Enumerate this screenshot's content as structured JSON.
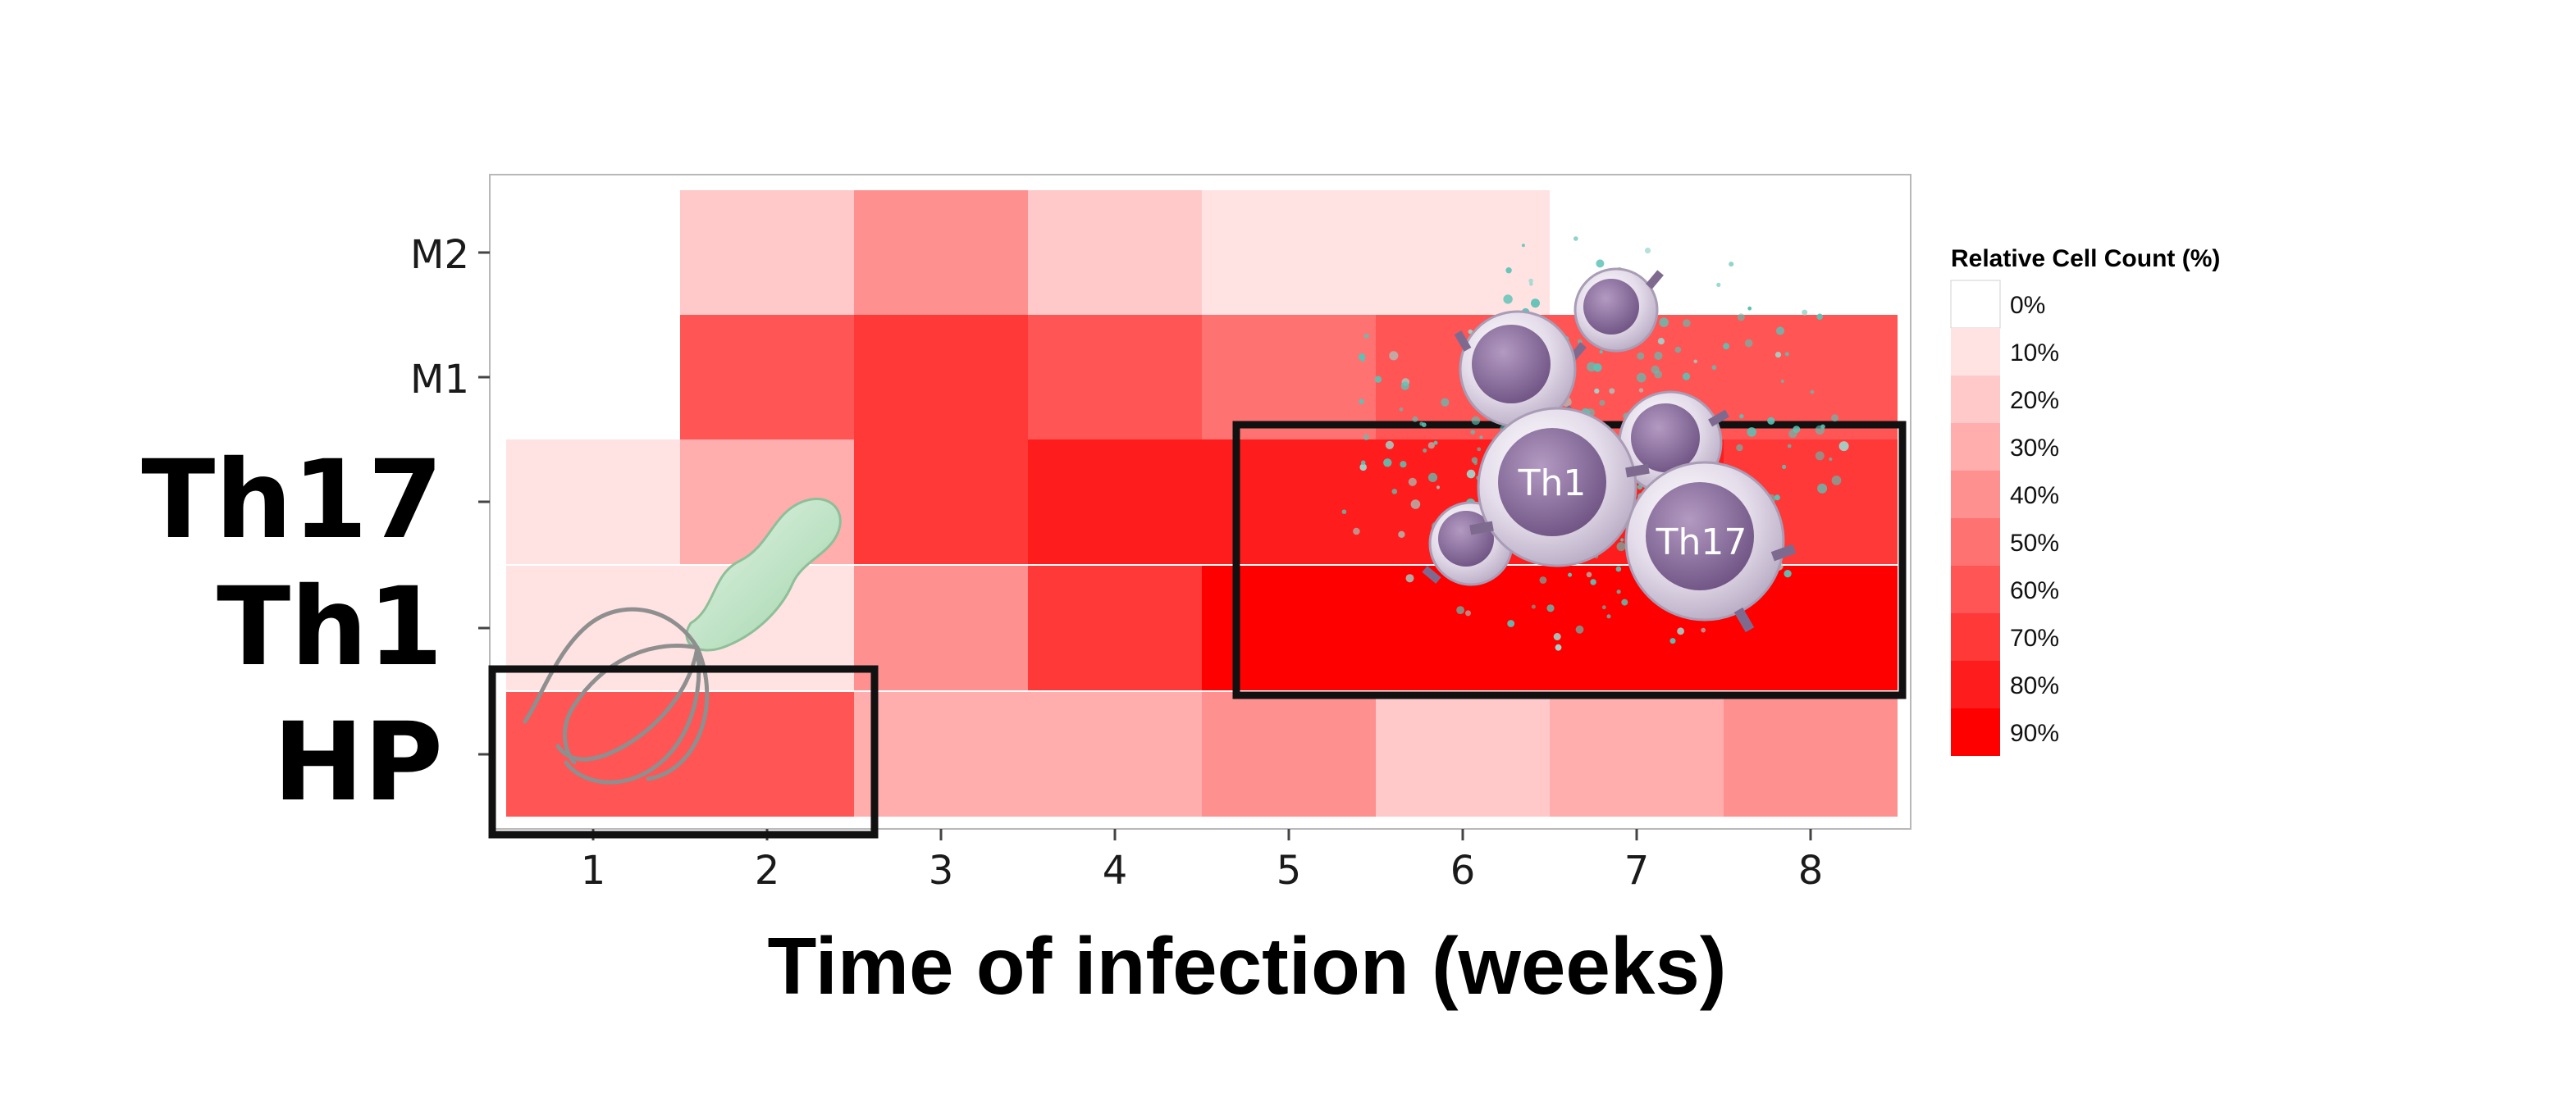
{
  "chart_data": {
    "type": "heatmap",
    "title": "",
    "xlabel": "Time of infection (weeks)",
    "ylabel": "",
    "x": [
      1,
      2,
      3,
      4,
      5,
      6,
      7,
      8
    ],
    "y_rows": [
      "HP",
      "Th1",
      "Th17",
      "M1",
      "M2"
    ],
    "y_tick_labels": {
      "M1": "M1",
      "M2": "M2"
    },
    "row_side_labels": [
      "Th17",
      "Th1",
      "HP"
    ],
    "values": {
      "M2": [
        null,
        20,
        40,
        20,
        10,
        10,
        null,
        null
      ],
      "M1": [
        null,
        60,
        70,
        60,
        50,
        60,
        60,
        60
      ],
      "Th17": [
        10,
        30,
        70,
        80,
        80,
        80,
        80,
        70
      ],
      "Th1": [
        10,
        10,
        40,
        70,
        90,
        90,
        90,
        90
      ],
      "HP": [
        60,
        60,
        30,
        30,
        40,
        20,
        30,
        40
      ]
    },
    "legend": {
      "title": "Relative Cell Count (%)",
      "entries": [
        "0%",
        "10%",
        "20%",
        "30%",
        "40%",
        "50%",
        "60%",
        "70%",
        "80%",
        "90%"
      ],
      "placement": "right"
    },
    "highlights": [
      {
        "rows": [
          "HP"
        ],
        "weeks": [
          1,
          2
        ]
      },
      {
        "rows": [
          "Th17",
          "Th1"
        ],
        "weeks": [
          5,
          8
        ]
      }
    ],
    "illustration_labels": [
      "Th1",
      "Th17"
    ],
    "grid": true,
    "colors": {
      "scale": [
        "#ffffff",
        "#ffe3e3",
        "#ffc9c9",
        "#ffadad",
        "#ff9090",
        "#ff7272",
        "#ff5555",
        "#ff3838",
        "#ff1c1c",
        "#ff0000"
      ],
      "panel": "#f3f3f3",
      "bacterium": "#bfe5c6",
      "cell": "#8b6f9c",
      "cytokine": "#5cc2b5"
    }
  }
}
